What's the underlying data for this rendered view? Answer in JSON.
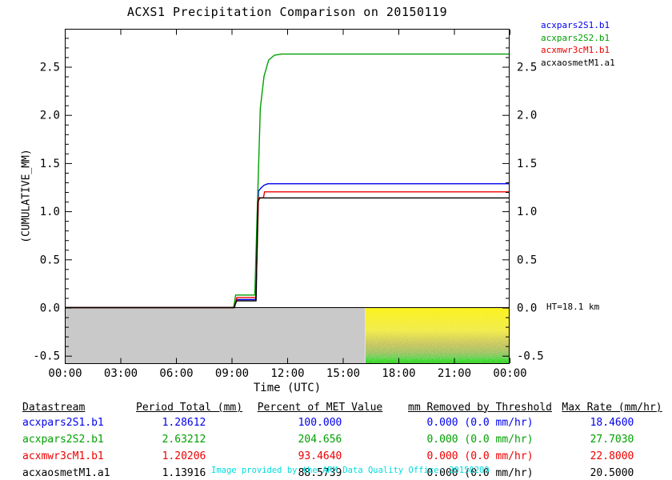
{
  "chart_data": {
    "type": "line",
    "title": "ACXS1 Precipitation Comparison on 20150119",
    "xlabel": "Time (UTC)",
    "ylabel": "(CUMULATIVE_MM)",
    "x_axis": {
      "range_hours": [
        0,
        24
      ],
      "ticks": [
        {
          "h": 0,
          "label": "00:00"
        },
        {
          "h": 3,
          "label": "03:00"
        },
        {
          "h": 6,
          "label": "06:00"
        },
        {
          "h": 9,
          "label": "09:00"
        },
        {
          "h": 12,
          "label": "12:00"
        },
        {
          "h": 15,
          "label": "15:00"
        },
        {
          "h": 18,
          "label": "18:00"
        },
        {
          "h": 21,
          "label": "21:00"
        },
        {
          "h": 24,
          "label": "00:00"
        }
      ]
    },
    "y_axis": {
      "range": [
        -0.59,
        2.9
      ],
      "major_ticks": [
        {
          "v": -0.5,
          "label": "-0.5"
        },
        {
          "v": 0.0,
          "label": "0.0"
        },
        {
          "v": 0.5,
          "label": "0.5"
        },
        {
          "v": 1.0,
          "label": "1.0"
        },
        {
          "v": 1.5,
          "label": "1.5"
        },
        {
          "v": 2.0,
          "label": "2.0"
        },
        {
          "v": 2.5,
          "label": "2.5"
        }
      ],
      "minor_step": 0.1
    },
    "legend": [
      {
        "label": "acxpars2S1.b1",
        "color": "#0000EE"
      },
      {
        "label": "acxpars2S2.b1",
        "color": "#00A000"
      },
      {
        "label": "acxmwr3cM1.b1",
        "color": "#EE0000"
      },
      {
        "label": "acxaosmetM1.a1",
        "color": "#000000"
      }
    ],
    "series": [
      {
        "name": "acxpars2S1.b1",
        "color": "#0000EE",
        "points": [
          [
            0,
            0
          ],
          [
            9.15,
            0
          ],
          [
            9.2,
            0.04
          ],
          [
            9.28,
            0.083
          ],
          [
            10.3,
            0.083
          ],
          [
            10.36,
            0.5
          ],
          [
            10.45,
            1.21
          ],
          [
            10.6,
            1.245
          ],
          [
            10.75,
            1.27
          ],
          [
            10.95,
            1.286
          ],
          [
            24,
            1.286
          ]
        ]
      },
      {
        "name": "acxpars2S2.b1",
        "color": "#00A000",
        "points": [
          [
            0,
            0
          ],
          [
            9.1,
            0
          ],
          [
            9.15,
            0.05
          ],
          [
            9.22,
            0.13
          ],
          [
            10.25,
            0.13
          ],
          [
            10.35,
            0.8
          ],
          [
            10.45,
            1.43
          ],
          [
            10.55,
            2.07
          ],
          [
            10.75,
            2.4
          ],
          [
            11.0,
            2.57
          ],
          [
            11.3,
            2.62
          ],
          [
            11.7,
            2.632
          ],
          [
            24,
            2.632
          ]
        ]
      },
      {
        "name": "acxmwr3cM1.b1",
        "color": "#EE0000",
        "points": [
          [
            0,
            0
          ],
          [
            9.15,
            0
          ],
          [
            9.2,
            0.04
          ],
          [
            9.28,
            0.105
          ],
          [
            10.3,
            0.105
          ],
          [
            10.38,
            0.6
          ],
          [
            10.45,
            1.14
          ],
          [
            10.72,
            1.14
          ],
          [
            10.78,
            1.202
          ],
          [
            24,
            1.202
          ]
        ]
      },
      {
        "name": "acxaosmetM1.a1",
        "color": "#000000",
        "points": [
          [
            0,
            0
          ],
          [
            9.15,
            0
          ],
          [
            9.2,
            0.035
          ],
          [
            9.28,
            0.07
          ],
          [
            10.32,
            0.07
          ],
          [
            10.42,
            1.1
          ],
          [
            10.52,
            1.139
          ],
          [
            24,
            1.139
          ]
        ]
      }
    ],
    "regions": [
      {
        "name": "no-radar-data",
        "style": "solid-gray",
        "color": "#C9C9C9",
        "h_start": 0,
        "h_end": 16.23,
        "v_top": 0,
        "v_bottom": -0.585
      },
      {
        "name": "radar-noise",
        "style": "yellow-green-noise",
        "h_start": 16.23,
        "h_end": 24,
        "v_top": 0,
        "v_bottom": -0.585
      }
    ],
    "annotations": [
      {
        "text": "HT=18.1 km",
        "at": "right of 0.0 tick"
      }
    ]
  },
  "table": {
    "headers": [
      "Datastream",
      "Period Total (mm)",
      "Percent of MET Value",
      "mm Removed by Threshold",
      "Max Rate (mm/hr)"
    ],
    "rows": [
      {
        "datastream": "acxpars2S1.b1",
        "color": "#0000EE",
        "period_total": "1.28612",
        "percent_met": "100.000",
        "removed": "0.000 (0.0 mm/hr)",
        "max_rate": "18.4600"
      },
      {
        "datastream": "acxpars2S2.b1",
        "color": "#00A000",
        "period_total": "2.63212",
        "percent_met": "204.656",
        "removed": "0.000 (0.0 mm/hr)",
        "max_rate": "27.7030"
      },
      {
        "datastream": "acxmwr3cM1.b1",
        "color": "#EE0000",
        "period_total": "1.20206",
        "percent_met": "93.4640",
        "removed": "0.000 (0.0 mm/hr)",
        "max_rate": "22.8000"
      },
      {
        "datastream": "acxaosmetM1.a1",
        "color": "#000000",
        "period_total": "1.13916",
        "percent_met": "88.5739",
        "removed": "0.000 (0.0 mm/hr)",
        "max_rate": "20.5000"
      }
    ]
  },
  "footer": {
    "text": "Image provided by the ARM Data Quality Office: 20150209",
    "color": "#00DBDB"
  }
}
